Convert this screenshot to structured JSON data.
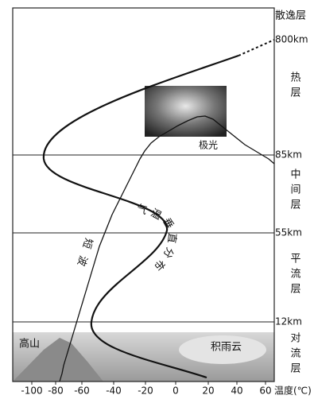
{
  "layers": [
    {
      "name": "散逸层"
    },
    {
      "name": "热层"
    },
    {
      "name": "中间层"
    },
    {
      "name": "平流层"
    },
    {
      "name": "对流层"
    }
  ],
  "boundaries": [
    "800km",
    "85km",
    "55km",
    "12km"
  ],
  "axis": {
    "ticks": [
      "-100",
      "-80",
      "-60",
      "-40",
      "-20",
      "0",
      "20",
      "40",
      "60"
    ],
    "label": "温度(℃)"
  },
  "labels": {
    "aurora": "极光",
    "temperature_curve": "气温垂直分布",
    "shortwave": "短波",
    "mountain": "高山",
    "cloud": "积雨云"
  }
}
